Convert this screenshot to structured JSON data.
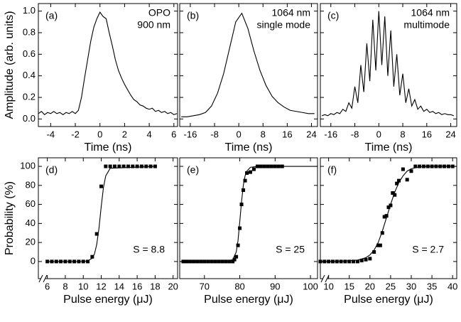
{
  "chart_data": [
    {
      "type": "line",
      "label": "(a)",
      "annotation": [
        "OPO",
        "900 nm"
      ],
      "ylabel": "Amplitude (arb. units)",
      "xlabel": "Time (ns)",
      "color": "#000000",
      "xlim": [
        -5,
        6.3
      ],
      "xticks": [
        -4,
        -2,
        0,
        2,
        4,
        6
      ],
      "ylim": [
        -0.07,
        1.07
      ],
      "yticks": [
        {
          "value": 0,
          "label": "0.0"
        },
        {
          "value": 0.2,
          "label": "0.2"
        },
        {
          "value": 0.4,
          "label": "0.4"
        },
        {
          "value": 0.6,
          "label": "0.6"
        },
        {
          "value": 0.8,
          "label": "0.8"
        },
        {
          "value": 1,
          "label": "1.0"
        }
      ],
      "show_ytick_labels": true,
      "x": [
        -5,
        -4.75,
        -4.5,
        -4.25,
        -4,
        -3.75,
        -3.5,
        -3.25,
        -3,
        -2.75,
        -2.5,
        -2.25,
        -2,
        -1.75,
        -1.5,
        -1.25,
        -1,
        -0.75,
        -0.5,
        -0.25,
        0,
        0.25,
        0.5,
        0.75,
        1,
        1.25,
        1.5,
        1.75,
        2,
        2.25,
        2.5,
        2.75,
        3,
        3.25,
        3.5,
        3.75,
        4,
        4.25,
        4.5,
        4.75,
        5,
        5.25,
        5.5,
        5.75,
        6,
        6.25
      ],
      "values": [
        0.05,
        0.07,
        0.04,
        0.06,
        0.05,
        0.07,
        0.05,
        0.06,
        0.04,
        0.06,
        0.05,
        0.07,
        0.05,
        0.08,
        0.2,
        0.38,
        0.55,
        0.72,
        0.85,
        0.93,
        0.99,
        0.95,
        0.93,
        0.8,
        0.68,
        0.55,
        0.45,
        0.38,
        0.32,
        0.27,
        0.22,
        0.18,
        0.16,
        0.13,
        0.12,
        0.1,
        0.09,
        0.1,
        0.07,
        0.08,
        0.06,
        0.07,
        0.05,
        0.06,
        0.04,
        0.05
      ]
    },
    {
      "type": "line",
      "label": "(b)",
      "annotation": [
        "1064 nm",
        "single mode"
      ],
      "xlabel": "Time (ns)",
      "color": "#000000",
      "xlim": [
        -19.5,
        26
      ],
      "xticks": [
        -16,
        -8,
        0,
        8,
        16,
        24
      ],
      "ylim": [
        -0.07,
        1.07
      ],
      "yticks": [
        0,
        0.2,
        0.4,
        0.6,
        0.8,
        1
      ],
      "show_ytick_labels": false,
      "x": [
        -19,
        -17,
        -15,
        -13,
        -11,
        -9,
        -7,
        -5,
        -3,
        -1,
        1,
        3,
        5,
        7,
        9,
        11,
        13,
        15,
        17,
        19,
        21,
        23,
        25
      ],
      "values": [
        0.02,
        0.02,
        0.03,
        0.04,
        0.06,
        0.12,
        0.24,
        0.42,
        0.66,
        0.9,
        0.98,
        0.84,
        0.63,
        0.45,
        0.31,
        0.21,
        0.15,
        0.11,
        0.08,
        0.07,
        0.06,
        0.05,
        0.05
      ]
    },
    {
      "type": "line",
      "label": "(c)",
      "annotation": [
        "1064 nm",
        "multimode"
      ],
      "xlabel": "Time (ns)",
      "color": "#000000",
      "xlim": [
        -19.5,
        26
      ],
      "xticks": [
        -16,
        -8,
        0,
        8,
        16,
        24
      ],
      "ylim": [
        -0.07,
        1.07
      ],
      "yticks": [
        0,
        0.2,
        0.4,
        0.6,
        0.8,
        1
      ],
      "show_ytick_labels": false,
      "x": [
        -19,
        -18,
        -17,
        -16,
        -15,
        -14,
        -13,
        -12,
        -11,
        -10,
        -9,
        -8,
        -7,
        -6,
        -5,
        -4,
        -3,
        -2,
        -1,
        0,
        1,
        2,
        3,
        4,
        5,
        6,
        7,
        8,
        9,
        10,
        11,
        12,
        13,
        14,
        15,
        16,
        17,
        18,
        19,
        20,
        21,
        22,
        23,
        24,
        25
      ],
      "values": [
        0.03,
        0.04,
        0.03,
        0.05,
        0.04,
        0.06,
        0.05,
        0.09,
        0.07,
        0.15,
        0.1,
        0.3,
        0.15,
        0.5,
        0.25,
        0.7,
        0.35,
        0.92,
        0.45,
        1.0,
        0.5,
        0.95,
        0.4,
        0.82,
        0.3,
        0.6,
        0.22,
        0.42,
        0.15,
        0.28,
        0.12,
        0.18,
        0.09,
        0.12,
        0.07,
        0.09,
        0.06,
        0.07,
        0.05,
        0.06,
        0.04,
        0.05,
        0.04,
        0.04,
        0.03
      ]
    },
    {
      "type": "scatter",
      "label": "(d)",
      "annotation": [
        "S = 8.8"
      ],
      "ylabel": "Probability (%)",
      "xlabel": "Pulse energy (μJ)",
      "color": "#000000",
      "marker": "square",
      "axis_break": true,
      "xlim": [
        5,
        20.5
      ],
      "xticks": [
        6,
        8,
        10,
        12,
        14,
        16,
        18,
        20
      ],
      "ylim": [
        -18,
        109
      ],
      "yticks": [
        0,
        20,
        40,
        60,
        80,
        100
      ],
      "show_ytick_labels": true,
      "x": [
        6,
        6.5,
        7,
        7.5,
        8,
        8.5,
        9,
        9.5,
        10,
        10.5,
        11,
        11.5,
        12,
        12.5,
        13,
        13.5,
        14,
        14.5,
        15,
        15.5,
        16,
        16.5,
        17,
        17.5,
        18
      ],
      "values": [
        0,
        0,
        0,
        0,
        0,
        0,
        0,
        0,
        0,
        0,
        5,
        29,
        79,
        100,
        100,
        100,
        100,
        100,
        100,
        100,
        100,
        100,
        100,
        100,
        100
      ],
      "fit_x": [
        6,
        10,
        10.5,
        11,
        11.25,
        11.5,
        11.75,
        12,
        12.25,
        12.5,
        13,
        18
      ],
      "fit_values": [
        0,
        0.1,
        0.6,
        3.5,
        8,
        18,
        35,
        58,
        78,
        90,
        98,
        100
      ]
    },
    {
      "type": "scatter",
      "label": "(e)",
      "annotation": [
        "S = 25"
      ],
      "xlabel": "Pulse energy (μJ)",
      "color": "#000000",
      "marker": "square",
      "axis_break": false,
      "xlim": [
        63,
        102
      ],
      "xticks": [
        70,
        80,
        90,
        100
      ],
      "ylim": [
        -18,
        109
      ],
      "yticks": [
        0,
        20,
        40,
        60,
        80,
        100
      ],
      "show_ytick_labels": false,
      "x": [
        64,
        65,
        66,
        67,
        68,
        69,
        70,
        71,
        72,
        73,
        74,
        75,
        76,
        77,
        78,
        78.5,
        79,
        79.5,
        80,
        80.5,
        81,
        81.5,
        82,
        83,
        84,
        85,
        86,
        87,
        88,
        89,
        90,
        91,
        92
      ],
      "values": [
        0,
        0,
        0,
        0,
        0,
        0,
        0,
        0,
        0,
        0,
        0,
        0,
        0,
        0,
        0,
        2,
        5,
        17,
        35,
        60,
        75,
        85,
        93,
        94,
        97,
        100,
        100,
        100,
        100,
        100,
        100,
        100,
        100
      ],
      "fit_x": [
        63,
        76,
        78,
        79,
        79.5,
        80,
        80.5,
        81,
        81.5,
        82,
        83,
        85,
        102
      ],
      "fit_values": [
        0,
        0,
        2,
        10,
        22,
        42,
        63,
        80,
        90,
        95,
        99,
        100,
        100
      ]
    },
    {
      "type": "scatter",
      "label": "(f)",
      "annotation": [
        "S = 2.7"
      ],
      "xlabel": "Pulse energy (μJ)",
      "color": "#000000",
      "marker": "square",
      "axis_break": true,
      "xlim": [
        8,
        41
      ],
      "xticks": [
        10,
        15,
        20,
        25,
        30,
        35,
        40
      ],
      "ylim": [
        -18,
        109
      ],
      "yticks": [
        0,
        20,
        40,
        60,
        80,
        100
      ],
      "show_ytick_labels": false,
      "x": [
        8,
        9,
        10,
        11,
        12,
        13,
        14,
        15,
        16,
        17,
        18,
        19,
        20,
        21,
        22,
        22.5,
        23,
        23.5,
        24,
        24.5,
        25,
        25.5,
        26,
        26.5,
        27,
        28,
        29,
        30,
        31,
        32,
        33,
        34,
        35,
        36,
        37,
        38,
        39,
        40
      ],
      "values": [
        0,
        0,
        0,
        0,
        0,
        0,
        0,
        0,
        0,
        0,
        1,
        2,
        3,
        10,
        17,
        17,
        30,
        47,
        48,
        57,
        59,
        72,
        70,
        82,
        85,
        97,
        86,
        95,
        100,
        100,
        100,
        100,
        100,
        100,
        100,
        100,
        100,
        100
      ],
      "fit_x": [
        8,
        14,
        17,
        19,
        20,
        21,
        22,
        23,
        24,
        25,
        26,
        27,
        28,
        29,
        30,
        32,
        35,
        41
      ],
      "fit_values": [
        0,
        0.5,
        1.5,
        4,
        7,
        12,
        20,
        32,
        46,
        60,
        73,
        83,
        90,
        95,
        97.5,
        99.5,
        100,
        100
      ]
    }
  ]
}
